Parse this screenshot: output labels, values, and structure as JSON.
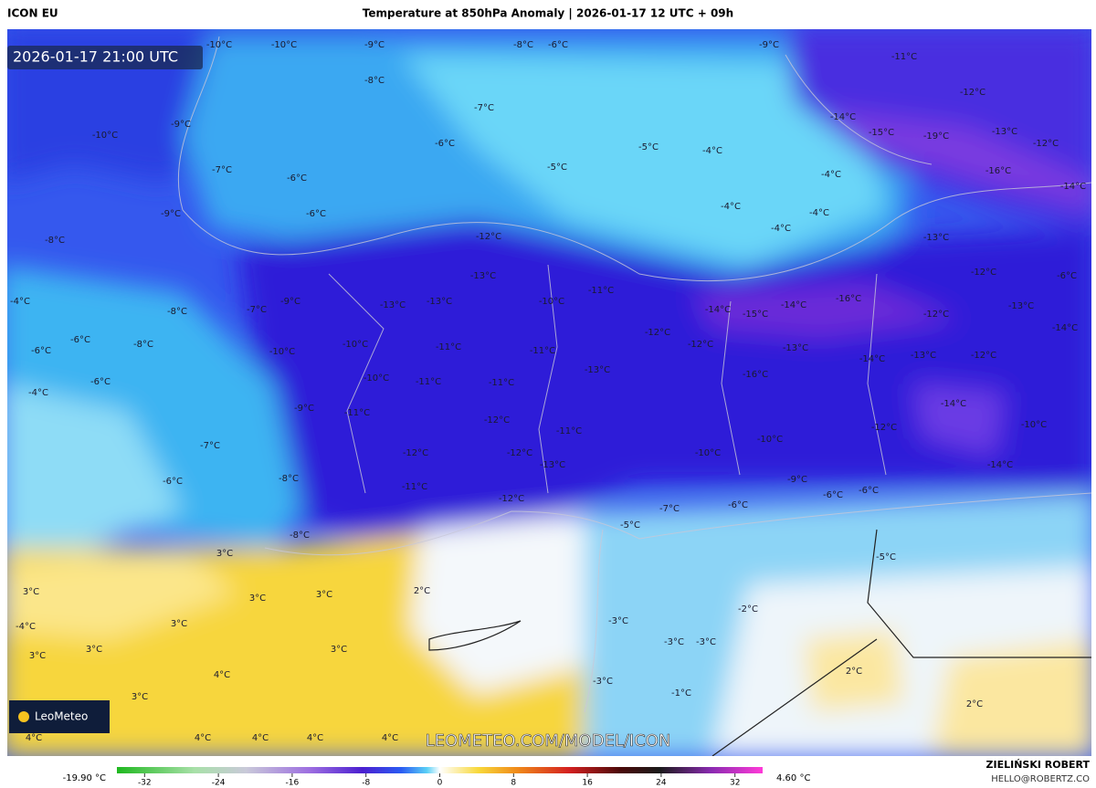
{
  "header": {
    "model": "ICON EU",
    "title": "Temperature at 850hPa Anomaly | 2026-01-17 12 UTC + 09h"
  },
  "map": {
    "valid_time": "2026-01-17 21:00 UTC",
    "watermark": "LEOMETEO.COM/MODEL/ICON",
    "logo": "LeoMeteo",
    "labels": [
      "-10°C",
      "-10°C",
      "-9°C",
      "-8°C",
      "-6°C",
      "-9°C",
      "-11°C",
      "-8°C",
      "-12°C",
      "-7°C",
      "-9°C",
      "-14°C",
      "-15°C",
      "-10°C",
      "-19°C",
      "-13°C",
      "-12°C",
      "-6°C",
      "-5°C",
      "-4°C",
      "-5°C",
      "-7°C",
      "-6°C",
      "-4°C",
      "-16°C",
      "-14°C",
      "-4°C",
      "-4°C",
      "-6°C",
      "-9°C",
      "-4°C",
      "-8°C",
      "-12°C",
      "-13°C",
      "-13°C",
      "-12°C",
      "-6°C",
      "-11°C",
      "-9°C",
      "-4°C",
      "-16°C",
      "-13°C",
      "-13°C",
      "-10°C",
      "-14°C",
      "-15°C",
      "-14°C",
      "-13°C",
      "-12°C",
      "-8°C",
      "-7°C",
      "-14°C",
      "-6°C",
      "-6°C",
      "-8°C",
      "-10°C",
      "-10°C",
      "-11°C",
      "-11°C",
      "-12°C",
      "-12°C",
      "-13°C",
      "-14°C",
      "-13°C",
      "-12°C",
      "-6°C",
      "-4°C",
      "-10°C",
      "-11°C",
      "-11°C",
      "-13°C",
      "-16°C",
      "-9°C",
      "-11°C",
      "-14°C",
      "-12°C",
      "-11°C",
      "-12°C",
      "-10°C",
      "-10°C",
      "-7°C",
      "-12°C",
      "-12°C",
      "-10°C",
      "-13°C",
      "-14°C",
      "-6°C",
      "-8°C",
      "-9°C",
      "-11°C",
      "-6°C",
      "-6°C",
      "-12°C",
      "-7°C",
      "-6°C",
      "-5°C",
      "-8°C",
      "3°C",
      "-5°C",
      "3°C",
      "3°C",
      "3°C",
      "2°C",
      "-2°C",
      "3°C",
      "-3°C",
      "3°C",
      "3°C",
      "3°C",
      "-3°C",
      "-3°C",
      "4°C",
      "2°C",
      "-3°C",
      "-1°C",
      "3°C",
      "2°C",
      "-4°C",
      "4°C",
      "4°C",
      "4°C",
      "4°C",
      "4°C"
    ]
  },
  "colorbar": {
    "min_label": "-19.90 °C",
    "max_label": "4.60 °C",
    "lim": [
      -35,
      35
    ],
    "ticks": [
      -32,
      -24,
      -16,
      -8,
      0,
      8,
      16,
      24,
      32
    ]
  },
  "footer": {
    "author": "ZIELIŃSKI ROBERT",
    "email": "HELLO@ROBERTZ.CO"
  }
}
